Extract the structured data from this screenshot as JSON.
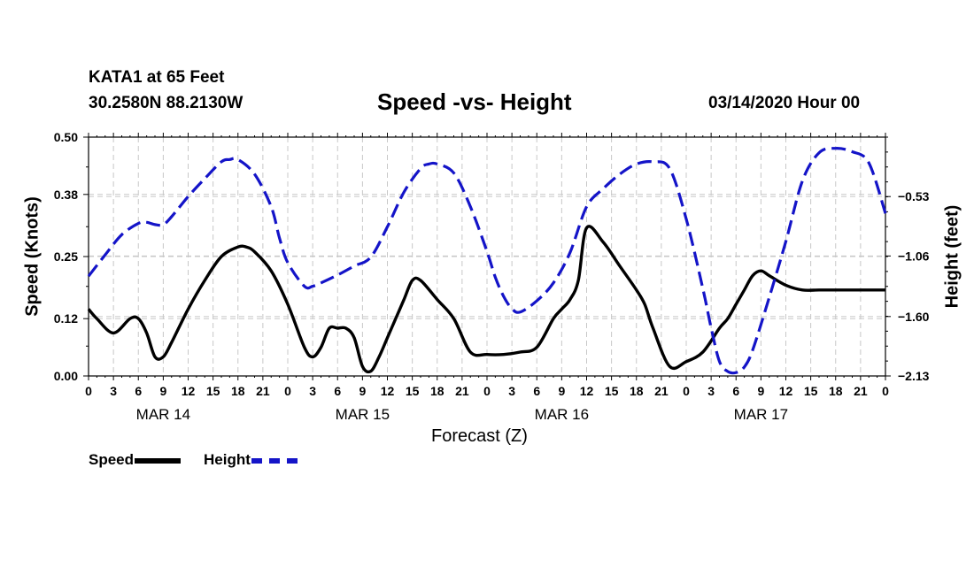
{
  "header": {
    "station": "KATA1 at 65 Feet",
    "coords": "30.2580N 88.2130W",
    "title": "Speed -vs- Height",
    "date": "03/14/2020 Hour 00"
  },
  "legend": {
    "speed_label": "Speed",
    "height_label": "Height"
  },
  "colors": {
    "speed": "#000000",
    "height": "#1414c8",
    "grid": "#c8c8c8"
  },
  "chart_data": {
    "type": "line",
    "title": "Speed -vs- Height",
    "xlabel": "Forecast (Z)",
    "ylabel": "Speed (Knots)",
    "ylabel_right": "Height (feet)",
    "x_hours_range": [
      0,
      96
    ],
    "ylim": [
      0,
      0.5
    ],
    "ylim_right": [
      -2.13,
      -0.0
    ],
    "y_ticks": [
      0.0,
      0.12,
      0.25,
      0.38,
      0.5
    ],
    "y_tick_labels": [
      "0.00",
      "0.12",
      "0.25",
      "0.38",
      "0.50"
    ],
    "y_ticks_right": [
      -2.13,
      -1.6,
      -1.06,
      -0.53
    ],
    "y_tick_labels_right": [
      "−2.13",
      "−1.60",
      "−1.06",
      "−0.53"
    ],
    "x_ticks": [
      0,
      3,
      6,
      9,
      12,
      15,
      18,
      21,
      24,
      27,
      30,
      33,
      36,
      39,
      42,
      45,
      48,
      51,
      54,
      57,
      60,
      63,
      66,
      69,
      72,
      75,
      78,
      81,
      84,
      87,
      90,
      93,
      96
    ],
    "x_tick_labels": [
      "0",
      "3",
      "6",
      "9",
      "12",
      "15",
      "18",
      "21",
      "0",
      "3",
      "6",
      "9",
      "12",
      "15",
      "18",
      "21",
      "0",
      "3",
      "6",
      "9",
      "12",
      "15",
      "18",
      "21",
      "0",
      "3",
      "6",
      "9",
      "12",
      "15",
      "18",
      "21",
      "0"
    ],
    "day_labels": [
      {
        "hour": 9,
        "label": "MAR 14"
      },
      {
        "hour": 33,
        "label": "MAR 15"
      },
      {
        "hour": 57,
        "label": "MAR 16"
      },
      {
        "hour": 81,
        "label": "MAR 17"
      }
    ],
    "grid": true,
    "legend_position": "bottom-left",
    "series": [
      {
        "name": "Speed",
        "axis": "left",
        "x": [
          0,
          1,
          3,
          5,
          6,
          7,
          8,
          9,
          10,
          12,
          14,
          16,
          18,
          19,
          20,
          22,
          24,
          26,
          27,
          28,
          29,
          30,
          31,
          32,
          33,
          34,
          35,
          36,
          37,
          38,
          39,
          40,
          42,
          44,
          46,
          48,
          50,
          52,
          54,
          56,
          57,
          58,
          59,
          60,
          62,
          64,
          66,
          67,
          68,
          70,
          72,
          74,
          76,
          77,
          78,
          79,
          80,
          81,
          82,
          84,
          86,
          88,
          90,
          92,
          94,
          96
        ],
        "values": [
          0.14,
          0.12,
          0.09,
          0.12,
          0.12,
          0.09,
          0.04,
          0.04,
          0.07,
          0.14,
          0.2,
          0.25,
          0.27,
          0.27,
          0.26,
          0.22,
          0.15,
          0.06,
          0.04,
          0.06,
          0.1,
          0.1,
          0.1,
          0.08,
          0.02,
          0.01,
          0.04,
          0.08,
          0.12,
          0.16,
          0.2,
          0.2,
          0.16,
          0.12,
          0.05,
          0.045,
          0.045,
          0.05,
          0.06,
          0.12,
          0.14,
          0.16,
          0.2,
          0.31,
          0.28,
          0.23,
          0.18,
          0.15,
          0.1,
          0.02,
          0.03,
          0.05,
          0.1,
          0.12,
          0.15,
          0.18,
          0.21,
          0.22,
          0.21,
          0.19,
          0.18,
          0.18,
          0.18,
          0.18,
          0.18,
          0.18
        ]
      },
      {
        "name": "Height",
        "axis": "right",
        "x": [
          0,
          2,
          4,
          6,
          7,
          8,
          9,
          10,
          12,
          14,
          16,
          17,
          18,
          20,
          22,
          23,
          24,
          26,
          27,
          28,
          30,
          32,
          34,
          36,
          38,
          40,
          41,
          42,
          44,
          46,
          48,
          49,
          50,
          51,
          52,
          54,
          56,
          58,
          60,
          62,
          64,
          66,
          68,
          70,
          72,
          74,
          75,
          76,
          77,
          78,
          79,
          80,
          82,
          84,
          86,
          88,
          90,
          92,
          94,
          96
        ],
        "values": [
          -1.24,
          -1.05,
          -0.87,
          -0.77,
          -0.76,
          -0.78,
          -0.78,
          -0.71,
          -0.53,
          -0.37,
          -0.22,
          -0.2,
          -0.2,
          -0.33,
          -0.62,
          -0.9,
          -1.12,
          -1.33,
          -1.33,
          -1.3,
          -1.23,
          -1.15,
          -1.07,
          -0.8,
          -0.49,
          -0.28,
          -0.24,
          -0.24,
          -0.32,
          -0.62,
          -1.02,
          -1.25,
          -1.42,
          -1.53,
          -1.56,
          -1.46,
          -1.3,
          -1.03,
          -0.62,
          -0.46,
          -0.33,
          -0.24,
          -0.22,
          -0.28,
          -0.73,
          -1.35,
          -1.7,
          -2.0,
          -2.09,
          -2.1,
          -2.05,
          -1.9,
          -1.43,
          -0.93,
          -0.39,
          -0.14,
          -0.1,
          -0.13,
          -0.23,
          -0.68
        ]
      }
    ]
  }
}
